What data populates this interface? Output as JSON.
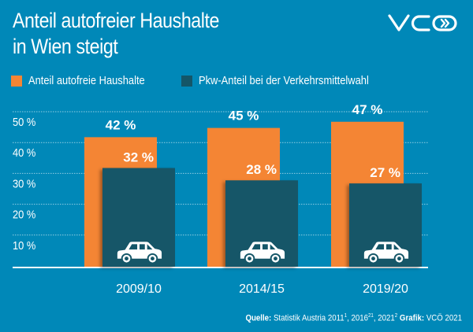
{
  "title_lines": [
    "Anteil autofreier Haushalte",
    "in Wien steigt"
  ],
  "logo": {
    "text": "VCÖ",
    "icon": "double-chevron-right-icon"
  },
  "colors": {
    "background": "#0088b8",
    "orange": "#f48534",
    "dark": "#145668",
    "text": "#ffffff"
  },
  "footer": {
    "source_label": "Quelle:",
    "source_text": "Statistik Austria 2011",
    "sup1": "1",
    "mid1": ", 2016",
    "sup2": "21",
    "mid2": ", 2021",
    "sup3": "2",
    "graphic_label": "Grafik:",
    "graphic_text": "VCÖ 2021"
  },
  "chart_data": {
    "type": "bar",
    "title": "Anteil autofreier Haushalte in Wien steigt",
    "xlabel": "",
    "ylabel": "",
    "categories": [
      "2009/10",
      "2014/15",
      "2019/20"
    ],
    "series": [
      {
        "name": "Anteil autofreie Haushalte",
        "color": "#f48534",
        "values": [
          42,
          45,
          47
        ],
        "labels": [
          "42 %",
          "45 %",
          "47 %"
        ]
      },
      {
        "name": "Pkw-Anteil bei der Verkehrsmittelwahl",
        "color": "#145668",
        "values": [
          32,
          28,
          27
        ],
        "labels": [
          "32 %",
          "28 %",
          "27 %"
        ]
      }
    ],
    "ylim": [
      0,
      50
    ],
    "yticks": [
      10,
      20,
      30,
      40,
      50
    ],
    "ytick_labels": [
      "10 %",
      "20 %",
      "30 %",
      "40 %",
      "50 %"
    ],
    "grid": true,
    "legend": "top-left",
    "icon": "car-icon"
  }
}
